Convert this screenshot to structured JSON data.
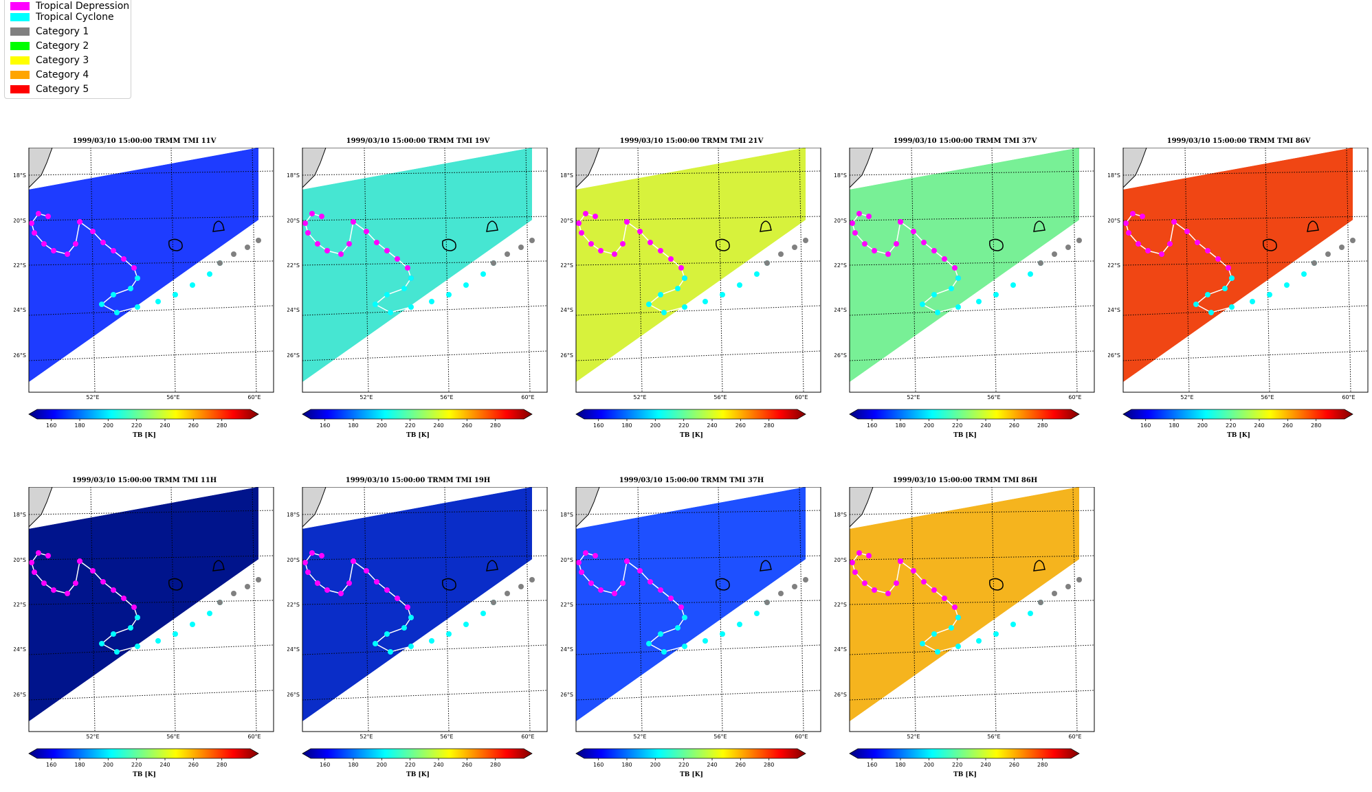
{
  "legend": {
    "items": [
      {
        "label": "Tropical Depression",
        "color": "#ff00ff"
      },
      {
        "label": "Tropical Cyclone",
        "color": "#00ffff"
      },
      {
        "label": "Category 1",
        "color": "#808080"
      },
      {
        "label": "Category 2",
        "color": "#00ff00"
      },
      {
        "label": "Category 3",
        "color": "#ffff00"
      },
      {
        "label": "Category 4",
        "color": "#ffa500"
      },
      {
        "label": "Category 5",
        "color": "#ff0000"
      }
    ]
  },
  "colorbar": {
    "ticks": [
      "160",
      "180",
      "200",
      "220",
      "240",
      "260",
      "280"
    ],
    "label": "TB [K]",
    "colormap": "jet",
    "range": [
      150,
      300
    ]
  },
  "map": {
    "lat_labels": [
      "18°S",
      "20°S",
      "22°S",
      "24°S",
      "26°S"
    ],
    "lon_labels": [
      "52°E",
      "56°E",
      "60°E"
    ]
  },
  "chart_data": [
    {
      "type": "heatmap",
      "title": "1999/03/10 15:00:00  TRMM TMI 11V",
      "fill": "#1e3cff",
      "colorbar_label": "TB [K]"
    },
    {
      "type": "heatmap",
      "title": "1999/03/10 15:00:00  TRMM TMI 19V",
      "fill": "#46e6d2",
      "colorbar_label": "TB [K]"
    },
    {
      "type": "heatmap",
      "title": "1999/03/10 15:00:00  TRMM TMI 21V",
      "fill": "#d7f23c",
      "colorbar_label": "TB [K]"
    },
    {
      "type": "heatmap",
      "title": "1999/03/10 15:00:00  TRMM TMI 37V",
      "fill": "#78f096",
      "colorbar_label": "TB [K]"
    },
    {
      "type": "heatmap",
      "title": "1999/03/10 15:00:00  TRMM TMI 86V",
      "fill": "#f04614",
      "colorbar_label": "TB [K]"
    },
    {
      "type": "heatmap",
      "title": "1999/03/10 15:00:00  TRMM TMI 11H",
      "fill": "#00148c",
      "colorbar_label": "TB [K]"
    },
    {
      "type": "heatmap",
      "title": "1999/03/10 15:00:00  TRMM TMI 19H",
      "fill": "#0a2dc8",
      "colorbar_label": "TB [K]"
    },
    {
      "type": "heatmap",
      "title": "1999/03/10 15:00:00  TRMM TMI 37H",
      "fill": "#1e50ff",
      "colorbar_label": "TB [K]"
    },
    {
      "type": "heatmap",
      "title": "1999/03/10 15:00:00  TRMM TMI 86H",
      "fill": "#f5b41e",
      "colorbar_label": "TB [K]"
    }
  ]
}
